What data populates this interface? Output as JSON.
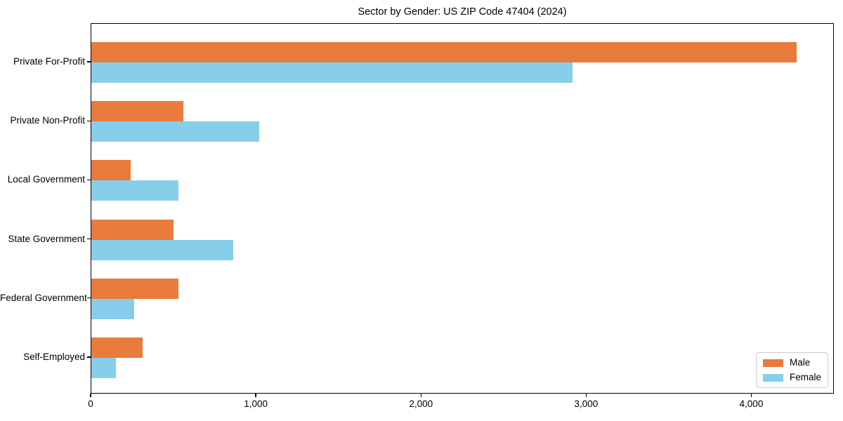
{
  "title": "Sector by Gender: US ZIP Code 47404 (2024)",
  "chart_data": {
    "type": "bar",
    "orientation": "horizontal",
    "title": "Sector by Gender: US ZIP Code 47404 (2024)",
    "xlabel": "",
    "ylabel": "",
    "categories": [
      "Private For-Profit",
      "Private Non-Profit",
      "Local Government",
      "State Government",
      "Federal Government",
      "Self-Employed"
    ],
    "series": [
      {
        "name": "Male",
        "color": "#E97B3D",
        "values": [
          4280,
          560,
          240,
          500,
          530,
          310
        ]
      },
      {
        "name": "Female",
        "color": "#87CEEB",
        "values": [
          2920,
          1020,
          530,
          860,
          260,
          150
        ]
      }
    ],
    "xlim": [
      0,
      4500
    ],
    "xticks": [
      0,
      1000,
      2000,
      3000,
      4000
    ],
    "xtick_labels": [
      "0",
      "1,000",
      "2,000",
      "3,000",
      "4,000"
    ],
    "grid": false,
    "legend_position": "lower right"
  },
  "legend": {
    "items": [
      {
        "label": "Male",
        "color": "#E97B3D"
      },
      {
        "label": "Female",
        "color": "#87CEEB"
      }
    ]
  }
}
